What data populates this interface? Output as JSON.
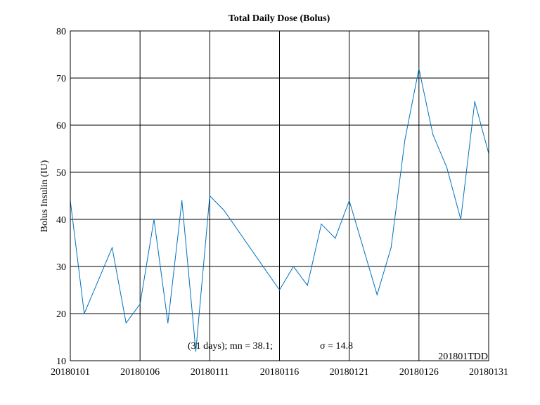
{
  "chart_data": {
    "type": "line",
    "title": "Total Daily Dose (Bolus)",
    "xlabel": "",
    "ylabel": "Bolus Insulin (IU)",
    "ylim": [
      10,
      80
    ],
    "yticks": [
      10,
      20,
      30,
      40,
      50,
      60,
      70,
      80
    ],
    "xlim": [
      "20180101",
      "20180131"
    ],
    "xticks": [
      "20180101",
      "20180106",
      "20180111",
      "20180116",
      "20180121",
      "20180126",
      "20180131"
    ],
    "grid": true,
    "line_color": "#0072BD",
    "series": [
      {
        "x": [
          "20180101",
          "20180102",
          "20180103",
          "20180104",
          "20180105",
          "20180106",
          "20180107",
          "20180108",
          "20180109",
          "20180110",
          "20180111",
          "20180112",
          "20180116",
          "20180117",
          "20180118",
          "20180119",
          "20180120",
          "20180121",
          "20180123",
          "20180124",
          "20180125",
          "20180126",
          "20180127",
          "20180128",
          "20180129",
          "20180130",
          "20180131"
        ],
        "values": [
          44,
          20,
          27,
          34,
          18,
          22,
          40,
          18,
          44,
          12,
          45,
          42,
          25,
          30,
          26,
          39,
          36,
          44,
          24,
          34,
          57,
          72,
          58,
          51,
          40,
          65,
          54
        ]
      }
    ],
    "annotations": {
      "stats": "(31 days); mn = 38.1;",
      "sigma": "σ = 14.8",
      "file_label": "201801TDD"
    }
  }
}
